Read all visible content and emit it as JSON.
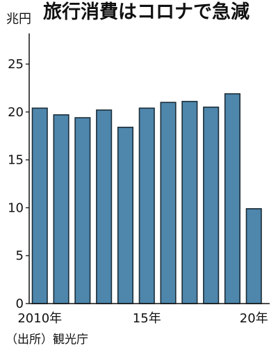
{
  "chart_data": {
    "type": "bar",
    "title": "旅行消費はコロナで急減",
    "unit_label": "兆円",
    "source": "（出所）観光庁",
    "categories": [
      "2010",
      "2011",
      "2012",
      "2013",
      "2014",
      "2015",
      "2016",
      "2017",
      "2018",
      "2019",
      "2020"
    ],
    "values": [
      20.4,
      19.7,
      19.4,
      20.2,
      18.4,
      20.4,
      21.0,
      21.1,
      20.5,
      21.9,
      9.9
    ],
    "xlabel": "",
    "ylabel": "",
    "ylim": [
      0,
      28.2
    ],
    "yticks": [
      "0",
      "5",
      "10",
      "15",
      "20",
      "25"
    ],
    "xtick_labels": [
      {
        "category": "2010",
        "label": "2010年"
      },
      {
        "category": "2015",
        "label": "15年"
      },
      {
        "category": "2020",
        "label": "20年"
      }
    ],
    "colors": {
      "bar": "#4e86ac",
      "bar_edge": "#1b2d38",
      "axis": "#111111",
      "text": "#111111"
    },
    "grid": false,
    "legend": "none"
  }
}
